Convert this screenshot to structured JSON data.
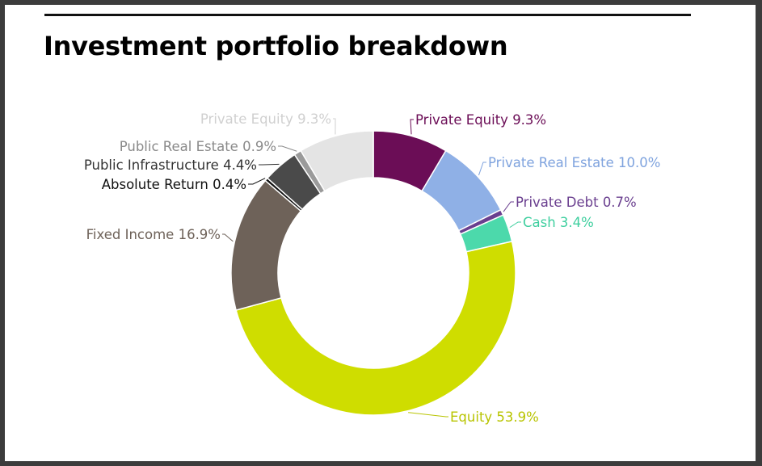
{
  "title": "Investment portfolio breakdown",
  "chart_data": {
    "type": "pie",
    "donut": true,
    "legend": "none",
    "slices": [
      {
        "label": "Private Equity 9.3%",
        "category": "Private Equity",
        "value": 9.3,
        "color": "#6b0d56",
        "label_color": "#6b0d56"
      },
      {
        "label": "Private Real Estate 10.0%",
        "category": "Private Real Estate",
        "value": 10.0,
        "color": "#8fb0e6",
        "label_color": "#7fa3de"
      },
      {
        "label": "Private Debt 0.7%",
        "category": "Private Debt",
        "value": 0.7,
        "color": "#6a3f8f",
        "label_color": "#6a3f8f"
      },
      {
        "label": "Cash 3.4%",
        "category": "Cash",
        "value": 3.4,
        "color": "#4cd9ab",
        "label_color": "#3fcf9f"
      },
      {
        "label": "Equity 53.9%",
        "category": "Equity",
        "value": 53.9,
        "color": "#cfdd00",
        "label_color": "#b8c400"
      },
      {
        "label": "Fixed Income 16.9%",
        "category": "Fixed Income",
        "value": 16.9,
        "color": "#6e6259",
        "label_color": "#6e6259"
      },
      {
        "label": "Absolute Return 0.4%",
        "category": "Absolute Return",
        "value": 0.4,
        "color": "#111111",
        "label_color": "#111111"
      },
      {
        "label": "Public Infrastructure 4.4%",
        "category": "Public Infrastructure",
        "value": 4.4,
        "color": "#4a4a4a",
        "label_color": "#333333"
      },
      {
        "label": "Public Real Estate 0.9%",
        "category": "Public Real Estate",
        "value": 0.9,
        "color": "#9a9a9a",
        "label_color": "#8a8a8a"
      },
      {
        "label": "Private Equity 9.3%",
        "category": "Private Equity",
        "value": 9.3,
        "color": "#e4e4e4",
        "label_color": "#d0d0d0"
      }
    ]
  }
}
